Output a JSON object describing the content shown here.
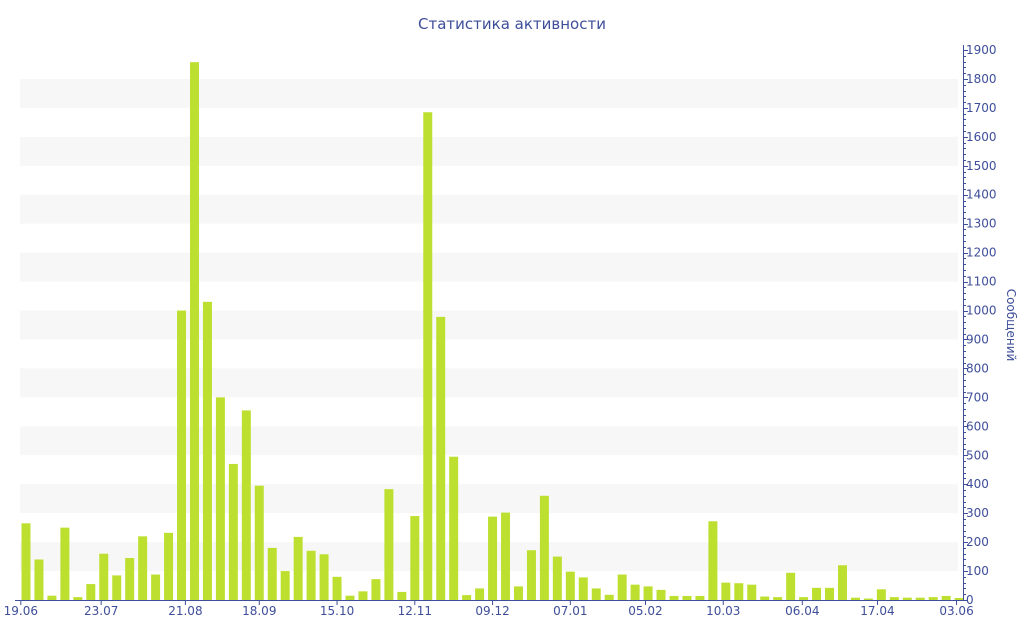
{
  "chart_data": {
    "type": "bar",
    "title": "Статистика активности",
    "xlabel": "",
    "ylabel": "Сообщений",
    "ylim": [
      0,
      1900
    ],
    "y_ticks": [
      0,
      100,
      200,
      300,
      400,
      500,
      600,
      700,
      800,
      900,
      1000,
      1100,
      1200,
      1300,
      1400,
      1500,
      1600,
      1700,
      1800,
      1900
    ],
    "y_axis_position": "right",
    "grid": "alternating horizontal bands",
    "x_tick_labels": [
      {
        "label": "19.06",
        "index": -0.4
      },
      {
        "label": "23.07",
        "index": 5.8
      },
      {
        "label": "21.08",
        "index": 12.3
      },
      {
        "label": "18.09",
        "index": 18
      },
      {
        "label": "15.10",
        "index": 24
      },
      {
        "label": "12.11",
        "index": 30
      },
      {
        "label": "09.12",
        "index": 36
      },
      {
        "label": "07.01",
        "index": 42
      },
      {
        "label": "05.02",
        "index": 47.8
      },
      {
        "label": "10.03",
        "index": 53.8
      },
      {
        "label": "06.04",
        "index": 59.9
      },
      {
        "label": "17.04",
        "index": 65.7
      },
      {
        "label": "03.06",
        "index": 71.8
      }
    ],
    "values": [
      265,
      140,
      15,
      250,
      10,
      55,
      160,
      85,
      145,
      220,
      88,
      232,
      1000,
      1858,
      1030,
      700,
      470,
      655,
      395,
      180,
      100,
      218,
      170,
      158,
      80,
      15,
      30,
      72,
      383,
      28,
      290,
      1685,
      978,
      495,
      17,
      40,
      288,
      302,
      47,
      172,
      360,
      150,
      98,
      78,
      40,
      18,
      88,
      53,
      47,
      35,
      14,
      14,
      14,
      272,
      60,
      58,
      53,
      12,
      10,
      94,
      10,
      42,
      42,
      120,
      8,
      5,
      37,
      10,
      8,
      8,
      10,
      14,
      7
    ],
    "bar_color": "#bde030",
    "axis_color": "#3e4e9a",
    "band_color": "#f7f7f7"
  }
}
